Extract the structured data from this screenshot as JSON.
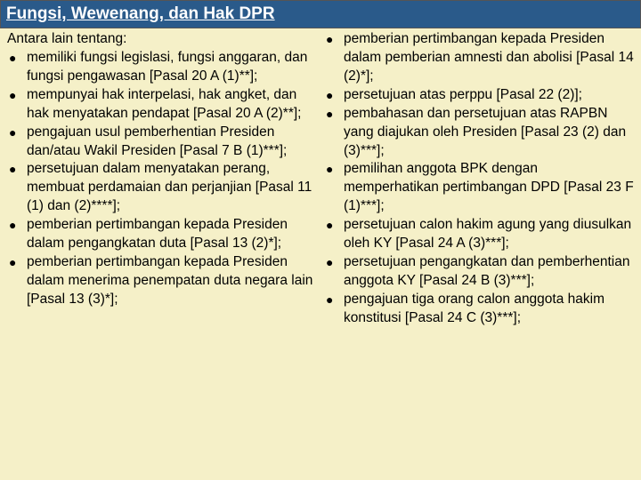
{
  "header": {
    "title": "Fungsi, Wewenang, dan Hak DPR",
    "bg_color": "#2a5a8a",
    "text_color": "#ffffff",
    "fontsize": 19
  },
  "body": {
    "bg_color": "#f5f0c8",
    "text_color": "#000000",
    "fontsize": 15.5,
    "bullet_color": "#000000"
  },
  "intro": "Antara lain tentang:",
  "left_items": [
    "memiliki fungsi legislasi, fungsi anggaran, dan fungsi pengawasan [Pasal 20 A (1)**];",
    "mempunyai hak interpelasi, hak angket, dan hak menyatakan pendapat [Pasal 20 A (2)**];",
    "pengajuan usul pemberhentian Presiden dan/atau Wakil Presiden [Pasal 7 B (1)***];",
    "persetujuan dalam  menyatakan perang, membuat perdamaian dan perjanjian [Pasal 11 (1) dan (2)****];",
    "pemberian pertimbangan kepada Presiden dalam pengangkatan  duta [Pasal 13 (2)*];",
    "pemberian pertimbangan kepada Presiden dalam menerima penempatan duta negara lain [Pasal 13 (3)*];"
  ],
  "right_items": [
    "pemberian pertimbangan kepada Presiden dalam pemberian amnesti dan abolisi [Pasal 14 (2)*];",
    "persetujuan atas perppu [Pasal 22 (2)];",
    "pembahasan dan persetujuan atas RAPBN yang diajukan oleh Presiden [Pasal 23 (2) dan (3)***];",
    "pemilihan anggota BPK dengan memperhatikan pertimbangan DPD [Pasal 23 F (1)***];",
    "persetujuan calon hakim agung yang diusulkan oleh KY [Pasal 24 A (3)***];",
    "persetujuan pengangkatan dan pemberhentian anggota KY [Pasal 24 B (3)***];",
    "pengajuan tiga orang calon anggota hakim konstitusi [Pasal 24 C (3)***];"
  ]
}
